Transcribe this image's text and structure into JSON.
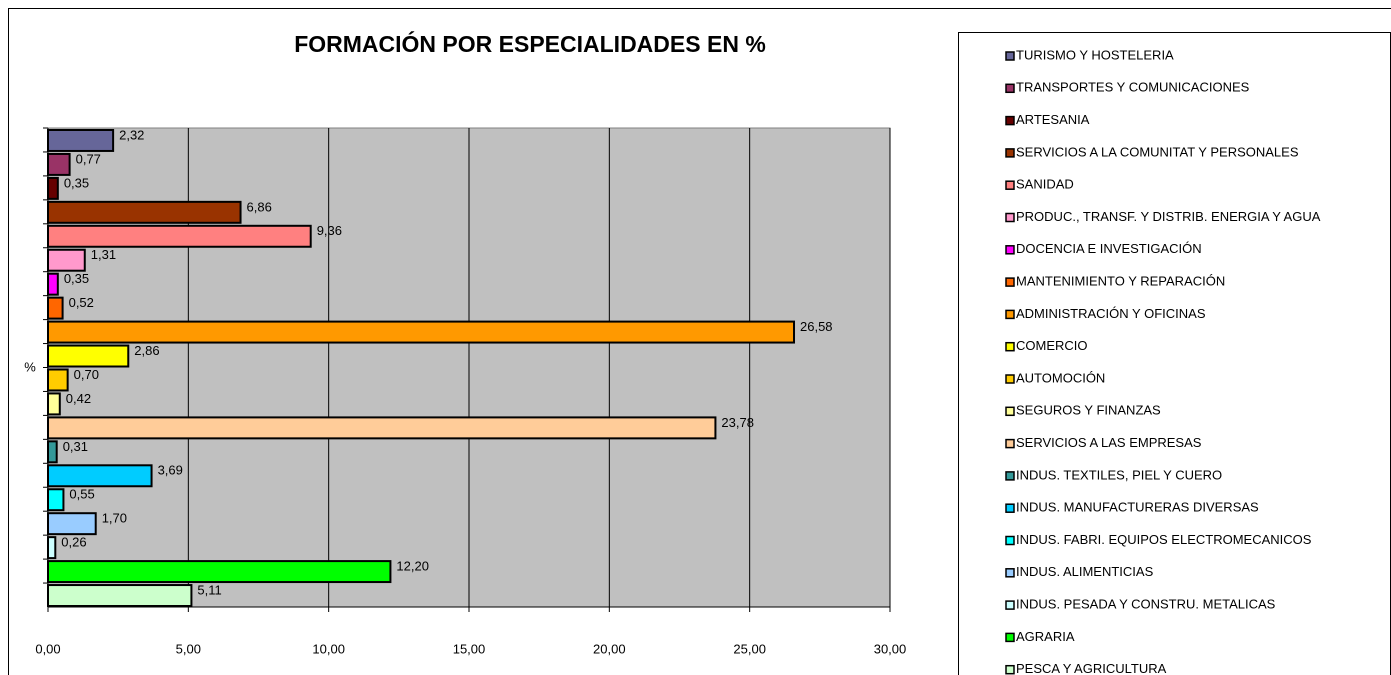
{
  "chart_data": {
    "type": "bar",
    "orientation": "horizontal",
    "title": "FORMACIÓN POR ESPECIALIDADES EN %",
    "y_label": "%",
    "categories": [
      "TURISMO Y HOSTELERIA",
      "TRANSPORTES Y COMUNICACIONES",
      "ARTESANIA",
      "SERVICIOS A LA COMUNITAT Y PERSONALES",
      "SANIDAD",
      "PRODUC., TRANSF. Y DISTRIB. ENERGIA Y AGUA",
      "DOCENCIA E INVESTIGACIÓN",
      "MANTENIMIENTO Y REPARACIÓN",
      "ADMINISTRACIÓN Y OFICINAS",
      "COMERCIO",
      "AUTOMOCIÓN",
      "SEGUROS Y FINANZAS",
      "SERVICIOS A LAS EMPRESAS",
      "INDUS. TEXTILES, PIEL Y CUERO",
      "INDUS. MANUFACTURERAS DIVERSAS",
      "INDUS. FABRI. EQUIPOS ELECTROMECANICOS",
      "INDUS. ALIMENTICIAS",
      "INDUS. PESADA Y CONSTRU. METALICAS",
      "AGRARIA",
      "PESCA Y AGRICULTURA"
    ],
    "values": [
      2.32,
      0.77,
      0.35,
      6.86,
      9.36,
      1.31,
      0.35,
      0.52,
      26.58,
      2.86,
      0.7,
      0.42,
      23.78,
      0.31,
      3.69,
      0.55,
      1.7,
      0.26,
      12.2,
      5.11
    ],
    "value_labels": [
      "2,32",
      "0,77",
      "0,35",
      "6,86",
      "9,36",
      "1,31",
      "0,35",
      "0,52",
      "26,58",
      "2,86",
      "0,70",
      "0,42",
      "23,78",
      "0,31",
      "3,69",
      "0,55",
      "1,70",
      "0,26",
      "12,20",
      "5,11"
    ],
    "colors": [
      "#666699",
      "#993366",
      "#660000",
      "#993300",
      "#ff8080",
      "#ff99cc",
      "#ff00ff",
      "#ff6600",
      "#ff9900",
      "#ffff00",
      "#ffcc00",
      "#ffff99",
      "#ffcc99",
      "#339999",
      "#00ccff",
      "#00ffff",
      "#99ccff",
      "#ccffff",
      "#00ff00",
      "#ccffcc"
    ],
    "xlim": [
      0,
      30
    ],
    "xticks": [
      {
        "value": 0,
        "label": "0,00"
      },
      {
        "value": 5,
        "label": "5,00"
      },
      {
        "value": 10,
        "label": "10,00"
      },
      {
        "value": 15,
        "label": "15,00"
      },
      {
        "value": 20,
        "label": "20,00"
      },
      {
        "value": 25,
        "label": "25,00"
      },
      {
        "value": 30,
        "label": "30,00"
      }
    ],
    "grid": true,
    "legend": "right"
  }
}
